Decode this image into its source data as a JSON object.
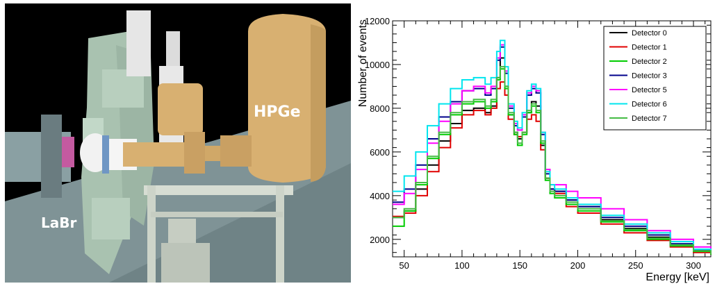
{
  "scene": {
    "labels": {
      "hpge": "HPGe",
      "labr": "LaBr"
    },
    "colors": {
      "background": "#000000",
      "floor": "#7f9396",
      "detector_gold": "#d8b071"
    }
  },
  "chart_data": {
    "type": "line",
    "title": "",
    "xlabel": "Energy [keV]",
    "ylabel": "Number of events",
    "xlim": [
      40,
      315
    ],
    "ylim": [
      1200,
      12000
    ],
    "x_ticks": [
      50,
      100,
      150,
      200,
      250,
      300
    ],
    "y_ticks": [
      2000,
      4000,
      6000,
      8000,
      10000,
      12000
    ],
    "legend_position": "top-right",
    "x": [
      40,
      50,
      60,
      70,
      80,
      90,
      100,
      110,
      120,
      125,
      130,
      133,
      137,
      140,
      145,
      148,
      152,
      156,
      160,
      164,
      168,
      172,
      176,
      180,
      190,
      200,
      220,
      240,
      260,
      280,
      300,
      315
    ],
    "series": [
      {
        "name": "Detector 0",
        "color": "#000000",
        "values": [
          3000,
          3300,
          4300,
          5400,
          6500,
          7300,
          7900,
          8000,
          7800,
          8100,
          9400,
          10300,
          9000,
          7700,
          6900,
          6600,
          6900,
          7800,
          8300,
          8100,
          6300,
          4800,
          4300,
          4200,
          3800,
          3500,
          2900,
          2500,
          2100,
          1750,
          1450,
          1300
        ]
      },
      {
        "name": "Detector 1",
        "color": "#e00000",
        "values": [
          3050,
          3200,
          4000,
          5100,
          6200,
          7100,
          7700,
          7900,
          7700,
          8000,
          8900,
          9200,
          8600,
          7500,
          6800,
          6700,
          6900,
          7500,
          7700,
          7400,
          6100,
          4800,
          4300,
          4100,
          3500,
          3200,
          2700,
          2300,
          1950,
          1650,
          1400,
          1300
        ]
      },
      {
        "name": "Detector 2",
        "color": "#00cc00",
        "values": [
          2600,
          3300,
          4500,
          5700,
          6800,
          7700,
          8200,
          8300,
          8000,
          8300,
          9300,
          9800,
          8900,
          7700,
          6800,
          6300,
          6800,
          7800,
          8100,
          7800,
          6400,
          4700,
          4100,
          3900,
          3600,
          3300,
          2800,
          2400,
          2000,
          1700,
          1450,
          1300
        ]
      },
      {
        "name": "Detector 3",
        "color": "#00008b",
        "values": [
          3700,
          4300,
          5400,
          6600,
          7600,
          8300,
          8800,
          8900,
          8600,
          8900,
          10200,
          10800,
          9600,
          8000,
          7200,
          7000,
          7600,
          8600,
          8900,
          8700,
          6800,
          5000,
          4300,
          4200,
          3800,
          3500,
          3000,
          2600,
          2200,
          1800,
          1500,
          1350
        ]
      },
      {
        "name": "Detector 5",
        "color": "#ff00ff",
        "values": [
          3600,
          4100,
          5200,
          6400,
          7400,
          8200,
          8800,
          9000,
          8700,
          9000,
          10300,
          10900,
          9700,
          8100,
          7300,
          7000,
          7700,
          8700,
          9000,
          8800,
          6900,
          5200,
          4500,
          4500,
          4200,
          3900,
          3400,
          2900,
          2400,
          2000,
          1650,
          1450
        ]
      },
      {
        "name": "Detector 6",
        "color": "#00e5ee",
        "values": [
          4200,
          4900,
          6000,
          7200,
          8200,
          8900,
          9300,
          9400,
          9100,
          9400,
          10600,
          11100,
          9900,
          8200,
          7400,
          7100,
          7800,
          8800,
          9100,
          8900,
          6900,
          5100,
          4500,
          4300,
          3900,
          3600,
          3100,
          2700,
          2300,
          1900,
          1550,
          1400
        ]
      },
      {
        "name": "Detector 7",
        "color": "#44bb44",
        "values": [
          3000,
          3400,
          4600,
          5800,
          6900,
          7800,
          8300,
          8400,
          8100,
          8400,
          9400,
          9900,
          9000,
          7800,
          6900,
          6400,
          6900,
          7900,
          8200,
          7900,
          6500,
          4800,
          4200,
          4000,
          3700,
          3400,
          2850,
          2450,
          2050,
          1750,
          1480,
          1320
        ]
      }
    ]
  }
}
